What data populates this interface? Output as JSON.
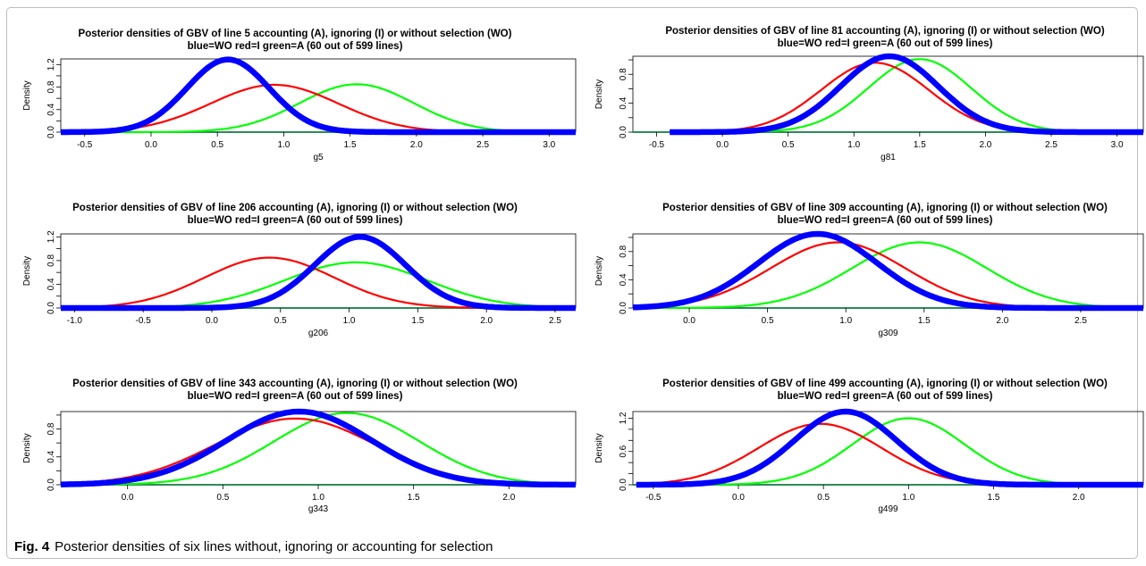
{
  "figure": {
    "label": "Fig. 4",
    "caption": "Posterior densities of six lines without, ignoring or accounting for selection"
  },
  "colors": {
    "WO": "#0000ff",
    "I": "#ff0000",
    "A": "#00ff00",
    "baseline": "#2e8b57"
  },
  "chart_data": [
    {
      "type": "line",
      "title": "Posterior densities of GBV of line 5 accounting (A), ignoring (I) or without selection (WO)",
      "subtitle": "blue=WO red=I green=A (60 out of 599 lines)",
      "xlabel": "g5",
      "ylabel": "Density",
      "xlim": [
        -0.68,
        3.2
      ],
      "ylim": [
        0,
        1.3
      ],
      "xticks": [
        "-0.5",
        "0.0",
        "0.5",
        "1.0",
        "1.5",
        "2.0",
        "2.5",
        "3.0"
      ],
      "yticks": [
        "0.0",
        "0.2",
        "0.4",
        "0.6",
        "0.8",
        "1.0",
        "1.2"
      ],
      "yticklabels": [
        "0.0",
        "0.4",
        "0.8",
        "1.2"
      ],
      "grid": false,
      "series": [
        {
          "name": "WO",
          "color": "blue",
          "mean": 0.58,
          "sd": 0.31,
          "peak": 1.29,
          "xmin": -0.68
        },
        {
          "name": "I",
          "color": "red",
          "mean": 0.93,
          "sd": 0.48,
          "peak": 0.84,
          "xmin": -0.68
        },
        {
          "name": "A",
          "color": "green",
          "mean": 1.55,
          "sd": 0.43,
          "peak": 0.85,
          "xmin": -0.68
        }
      ]
    },
    {
      "type": "line",
      "title": "Posterior densities of GBV of line 81 accounting (A), ignoring (I) or without selection (WO)",
      "subtitle": "blue=WO red=I green=A (60 out of 599 lines)",
      "xlabel": "g81",
      "ylabel": "Density",
      "xlim": [
        -0.68,
        3.2
      ],
      "ylim": [
        0,
        1.05
      ],
      "xticks": [
        "-0.5",
        "0.0",
        "0.5",
        "1.0",
        "1.5",
        "2.0",
        "2.5",
        "3.0"
      ],
      "yticks": [
        "0.0",
        "0.2",
        "0.4",
        "0.6",
        "0.8",
        "1.0"
      ],
      "yticklabels": [
        "0.0",
        "0.4",
        "0.8"
      ],
      "grid": false,
      "series": [
        {
          "name": "WO",
          "color": "blue",
          "mean": 1.27,
          "sd": 0.37,
          "peak": 1.05,
          "xmin": -0.4
        },
        {
          "name": "I",
          "color": "red",
          "mean": 1.16,
          "sd": 0.41,
          "peak": 0.96,
          "xmin": -0.4
        },
        {
          "name": "A",
          "color": "green",
          "mean": 1.5,
          "sd": 0.39,
          "peak": 1.01,
          "xmin": -0.4
        }
      ]
    },
    {
      "type": "line",
      "title": "Posterior densities of GBV of line 206 accounting (A), ignoring (I) or without selection (WO)",
      "subtitle": "blue=WO red=I green=A (60 out of 599 lines)",
      "xlabel": "g206",
      "ylabel": "Density",
      "xlim": [
        -1.1,
        2.65
      ],
      "ylim": [
        0,
        1.25
      ],
      "xticks": [
        "-1.0",
        "-0.5",
        "0.0",
        "0.5",
        "1.0",
        "1.5",
        "2.0",
        "2.5"
      ],
      "yticks": [
        "0.0",
        "0.2",
        "0.4",
        "0.6",
        "0.8",
        "1.0",
        "1.2"
      ],
      "yticklabels": [
        "0.0",
        "0.4",
        "0.8",
        "1.2"
      ],
      "grid": false,
      "series": [
        {
          "name": "WO",
          "color": "blue",
          "mean": 1.08,
          "sd": 0.33,
          "peak": 1.2,
          "xmin": -1.1
        },
        {
          "name": "I",
          "color": "red",
          "mean": 0.42,
          "sd": 0.47,
          "peak": 0.85,
          "xmin": -1.1
        },
        {
          "name": "A",
          "color": "green",
          "mean": 1.05,
          "sd": 0.52,
          "peak": 0.77,
          "xmin": -1.1
        }
      ]
    },
    {
      "type": "line",
      "title": "Posterior densities of GBV of line 309 accounting (A), ignoring (I) or without selection (WO)",
      "subtitle": "blue=WO red=I green=A (60 out of 599 lines)",
      "xlabel": "g309",
      "ylabel": "Density",
      "xlim": [
        -0.36,
        2.9
      ],
      "ylim": [
        0,
        1.05
      ],
      "xticks": [
        "0.0",
        "0.5",
        "1.0",
        "1.5",
        "2.0",
        "2.5"
      ],
      "yticks": [
        "0.0",
        "0.2",
        "0.4",
        "0.6",
        "0.8",
        "1.0"
      ],
      "yticklabels": [
        "0.0",
        "0.4",
        "0.8"
      ],
      "grid": false,
      "series": [
        {
          "name": "WO",
          "color": "blue",
          "mean": 0.82,
          "sd": 0.38,
          "peak": 1.05,
          "xmin": -0.36
        },
        {
          "name": "I",
          "color": "red",
          "mean": 0.95,
          "sd": 0.43,
          "peak": 0.93,
          "xmin": -0.36
        },
        {
          "name": "A",
          "color": "green",
          "mean": 1.47,
          "sd": 0.43,
          "peak": 0.93,
          "xmin": -0.36
        }
      ]
    },
    {
      "type": "line",
      "title": "Posterior densities of GBV of line 343 accounting (A), ignoring (I) or without selection (WO)",
      "subtitle": "blue=WO red=I green=A (60 out of 599 lines)",
      "xlabel": "g343",
      "ylabel": "Density",
      "xlim": [
        -0.35,
        2.35
      ],
      "ylim": [
        0,
        1.05
      ],
      "xticks": [
        "0.0",
        "0.5",
        "1.0",
        "1.5",
        "2.0"
      ],
      "yticks": [
        "0.0",
        "0.2",
        "0.4",
        "0.6",
        "0.8",
        "1.0"
      ],
      "yticklabels": [
        "0.0",
        "0.4",
        "0.8"
      ],
      "grid": false,
      "series": [
        {
          "name": "WO",
          "color": "blue",
          "mean": 0.9,
          "sd": 0.38,
          "peak": 1.05,
          "xmin": -0.35
        },
        {
          "name": "I",
          "color": "red",
          "mean": 0.88,
          "sd": 0.42,
          "peak": 0.95,
          "xmin": -0.35
        },
        {
          "name": "A",
          "color": "green",
          "mean": 1.15,
          "sd": 0.38,
          "peak": 1.03,
          "xmin": -0.35
        }
      ]
    },
    {
      "type": "line",
      "title": "Posterior densities of GBV of line 499 accounting (A), ignoring (I) or without selection (WO)",
      "subtitle": "blue=WO red=I green=A (60 out of 599 lines)",
      "xlabel": "g499",
      "ylabel": "Density",
      "xlim": [
        -0.62,
        2.38
      ],
      "ylim": [
        0,
        1.32
      ],
      "xticks": [
        "-0.5",
        "0.0",
        "0.5",
        "1.0",
        "1.5",
        "2.0"
      ],
      "yticks": [
        "0.0",
        "0.2",
        "0.4",
        "0.6",
        "0.8",
        "1.0",
        "1.2"
      ],
      "yticklabels": [
        "0.0",
        "0.6",
        "1.2"
      ],
      "grid": false,
      "series": [
        {
          "name": "WO",
          "color": "blue",
          "mean": 0.63,
          "sd": 0.3,
          "peak": 1.32,
          "xmin": -0.6
        },
        {
          "name": "I",
          "color": "red",
          "mean": 0.48,
          "sd": 0.36,
          "peak": 1.1,
          "xmin": -0.6
        },
        {
          "name": "A",
          "color": "green",
          "mean": 1.0,
          "sd": 0.33,
          "peak": 1.2,
          "xmin": -0.6
        }
      ]
    }
  ]
}
